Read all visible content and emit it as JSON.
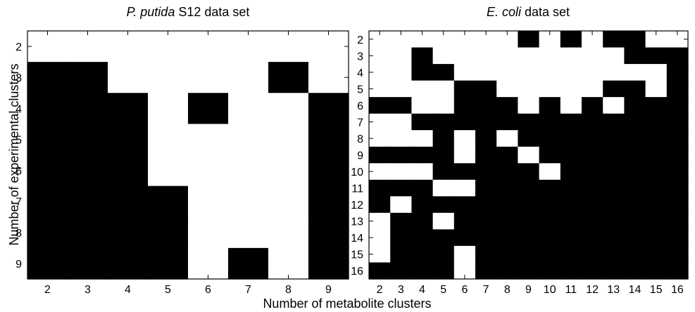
{
  "chart_data": [
    {
      "type": "heatmap",
      "title_italic": "P. putida",
      "title_rest": " S12 data set",
      "x": [
        2,
        3,
        4,
        5,
        6,
        7,
        8,
        9
      ],
      "y": [
        2,
        3,
        4,
        5,
        6,
        7,
        8,
        9
      ],
      "colors": {
        "0": "#ffffff",
        "1": "#000000"
      },
      "values": [
        [
          0,
          0,
          0,
          0,
          0,
          0,
          0,
          0
        ],
        [
          1,
          1,
          0,
          0,
          0,
          0,
          1,
          0
        ],
        [
          1,
          1,
          1,
          0,
          1,
          0,
          0,
          1
        ],
        [
          1,
          1,
          1,
          0,
          0,
          0,
          0,
          1
        ],
        [
          1,
          1,
          1,
          0,
          0,
          0,
          0,
          1
        ],
        [
          1,
          1,
          1,
          1,
          0,
          0,
          0,
          1
        ],
        [
          1,
          1,
          1,
          1,
          0,
          0,
          0,
          1
        ],
        [
          1,
          1,
          1,
          1,
          0,
          1,
          0,
          1
        ]
      ]
    },
    {
      "type": "heatmap",
      "title_italic": "E. coli",
      "title_rest": " data set",
      "x": [
        2,
        3,
        4,
        5,
        6,
        7,
        8,
        9,
        10,
        11,
        12,
        13,
        14,
        15,
        16
      ],
      "y": [
        2,
        3,
        4,
        5,
        6,
        7,
        8,
        9,
        10,
        11,
        12,
        13,
        14,
        15,
        16
      ],
      "colors": {
        "0": "#ffffff",
        "1": "#000000"
      },
      "values": [
        [
          0,
          0,
          0,
          0,
          0,
          0,
          0,
          1,
          0,
          1,
          0,
          1,
          1,
          0,
          0
        ],
        [
          0,
          0,
          1,
          0,
          0,
          0,
          0,
          0,
          0,
          0,
          0,
          0,
          1,
          1,
          1
        ],
        [
          0,
          0,
          1,
          1,
          0,
          0,
          0,
          0,
          0,
          0,
          0,
          0,
          0,
          0,
          1
        ],
        [
          0,
          0,
          0,
          0,
          1,
          1,
          0,
          0,
          0,
          0,
          0,
          1,
          1,
          0,
          1
        ],
        [
          1,
          1,
          0,
          0,
          1,
          1,
          1,
          0,
          1,
          0,
          1,
          0,
          1,
          1,
          1
        ],
        [
          0,
          0,
          1,
          1,
          1,
          1,
          1,
          1,
          1,
          1,
          1,
          1,
          1,
          1,
          1
        ],
        [
          0,
          0,
          0,
          1,
          0,
          1,
          0,
          1,
          1,
          1,
          1,
          1,
          1,
          1,
          1
        ],
        [
          1,
          1,
          1,
          1,
          0,
          1,
          1,
          0,
          1,
          1,
          1,
          1,
          1,
          1,
          1
        ],
        [
          0,
          0,
          0,
          1,
          1,
          1,
          1,
          1,
          0,
          1,
          1,
          1,
          1,
          1,
          1
        ],
        [
          1,
          1,
          1,
          0,
          0,
          1,
          1,
          1,
          1,
          1,
          1,
          1,
          1,
          1,
          1
        ],
        [
          1,
          0,
          1,
          1,
          1,
          1,
          1,
          1,
          1,
          1,
          1,
          1,
          1,
          1,
          1
        ],
        [
          0,
          1,
          1,
          0,
          1,
          1,
          1,
          1,
          1,
          1,
          1,
          1,
          1,
          1,
          1
        ],
        [
          0,
          1,
          1,
          1,
          1,
          1,
          1,
          1,
          1,
          1,
          1,
          1,
          1,
          1,
          1
        ],
        [
          0,
          1,
          1,
          1,
          0,
          1,
          1,
          1,
          1,
          1,
          1,
          1,
          1,
          1,
          1
        ],
        [
          1,
          1,
          1,
          1,
          0,
          1,
          1,
          1,
          1,
          1,
          1,
          1,
          1,
          1,
          1
        ]
      ]
    }
  ],
  "xlabel": "Number of metabolite clusters",
  "ylabel": "Number of experimental clusters"
}
